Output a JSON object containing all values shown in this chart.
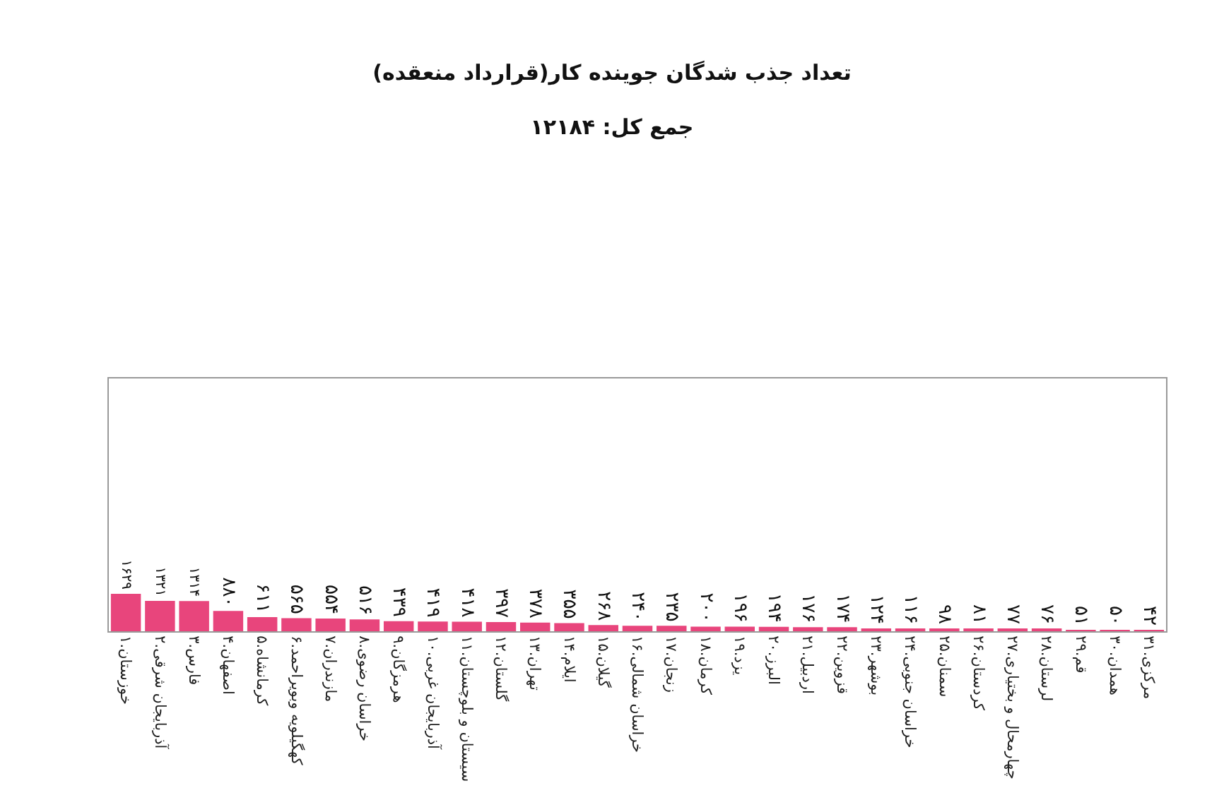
{
  "chart_data": {
    "type": "bar",
    "title": "تعداد جذب شدگان جوینده کار(قرارداد منعقده)",
    "subtitle": "جمع کل: ۱۲۱۸۴",
    "categories": [
      "۱.خوزستان",
      "۲.آذربایجان شرقی",
      "۳.فارس",
      "۴.اصفهان",
      "۵.کرمانشاه",
      "۶.کهگیلویه وبویراحمد",
      "۷.مازندران",
      "۸.خراسان رضوی",
      "۹.هرمزگان",
      "۱۰.آذربایجان غربی",
      "۱۱.سیستان و بلوچستان",
      "۱۲.گلستان",
      "۱۳.تهران",
      "۱۴.ایلام",
      "۱۵.گیلان",
      "۱۶.خراسان شمالی",
      "۱۷.زنجان",
      "۱۸.کرمان",
      "۱۹.یزد",
      "۲۰.البرز",
      "۲۱.اردبیل",
      "۲۲.قزوین",
      "۲۳.بوشهر",
      "۲۴.خراسان جنوبی",
      "۲۵.سمنان",
      "۲۶.کردستان",
      "۲۷.چهارمحال و بختیاری",
      "۲۸.لرستان",
      "۲۹.قم",
      "۳۰.همدان",
      "۳۱.مرکزی"
    ],
    "values": [
      1629,
      1321,
      1314,
      880,
      611,
      565,
      554,
      516,
      439,
      419,
      418,
      397,
      378,
      355,
      268,
      240,
      235,
      200,
      196,
      194,
      176,
      174,
      124,
      116,
      98,
      81,
      77,
      76,
      51,
      50,
      42
    ],
    "value_labels": [
      "۱۶۲۹",
      "۱۳۲۱",
      "۱۳۱۴",
      "۸۸۰",
      "۶۱۱",
      "۵۶۵",
      "۵۵۴",
      "۵۱۶",
      "۴۳۹",
      "۴۱۹",
      "۴۱۸",
      "۳۹۷",
      "۳۷۸",
      "۳۵۵",
      "۲۶۸",
      "۲۴۰",
      "۲۳۵",
      "۲۰۰",
      "۱۹۶",
      "۱۹۴",
      "۱۷۶",
      "۱۷۴",
      "۱۲۴",
      "۱۱۶",
      "۹۸",
      "۸۱",
      "۷۷",
      "۷۶",
      "۵۱",
      "۵۰",
      "۴۲"
    ],
    "color": "#e8457c",
    "ylim": [
      0,
      11000
    ],
    "tick_labels": "x",
    "grid": false,
    "legend": false
  }
}
